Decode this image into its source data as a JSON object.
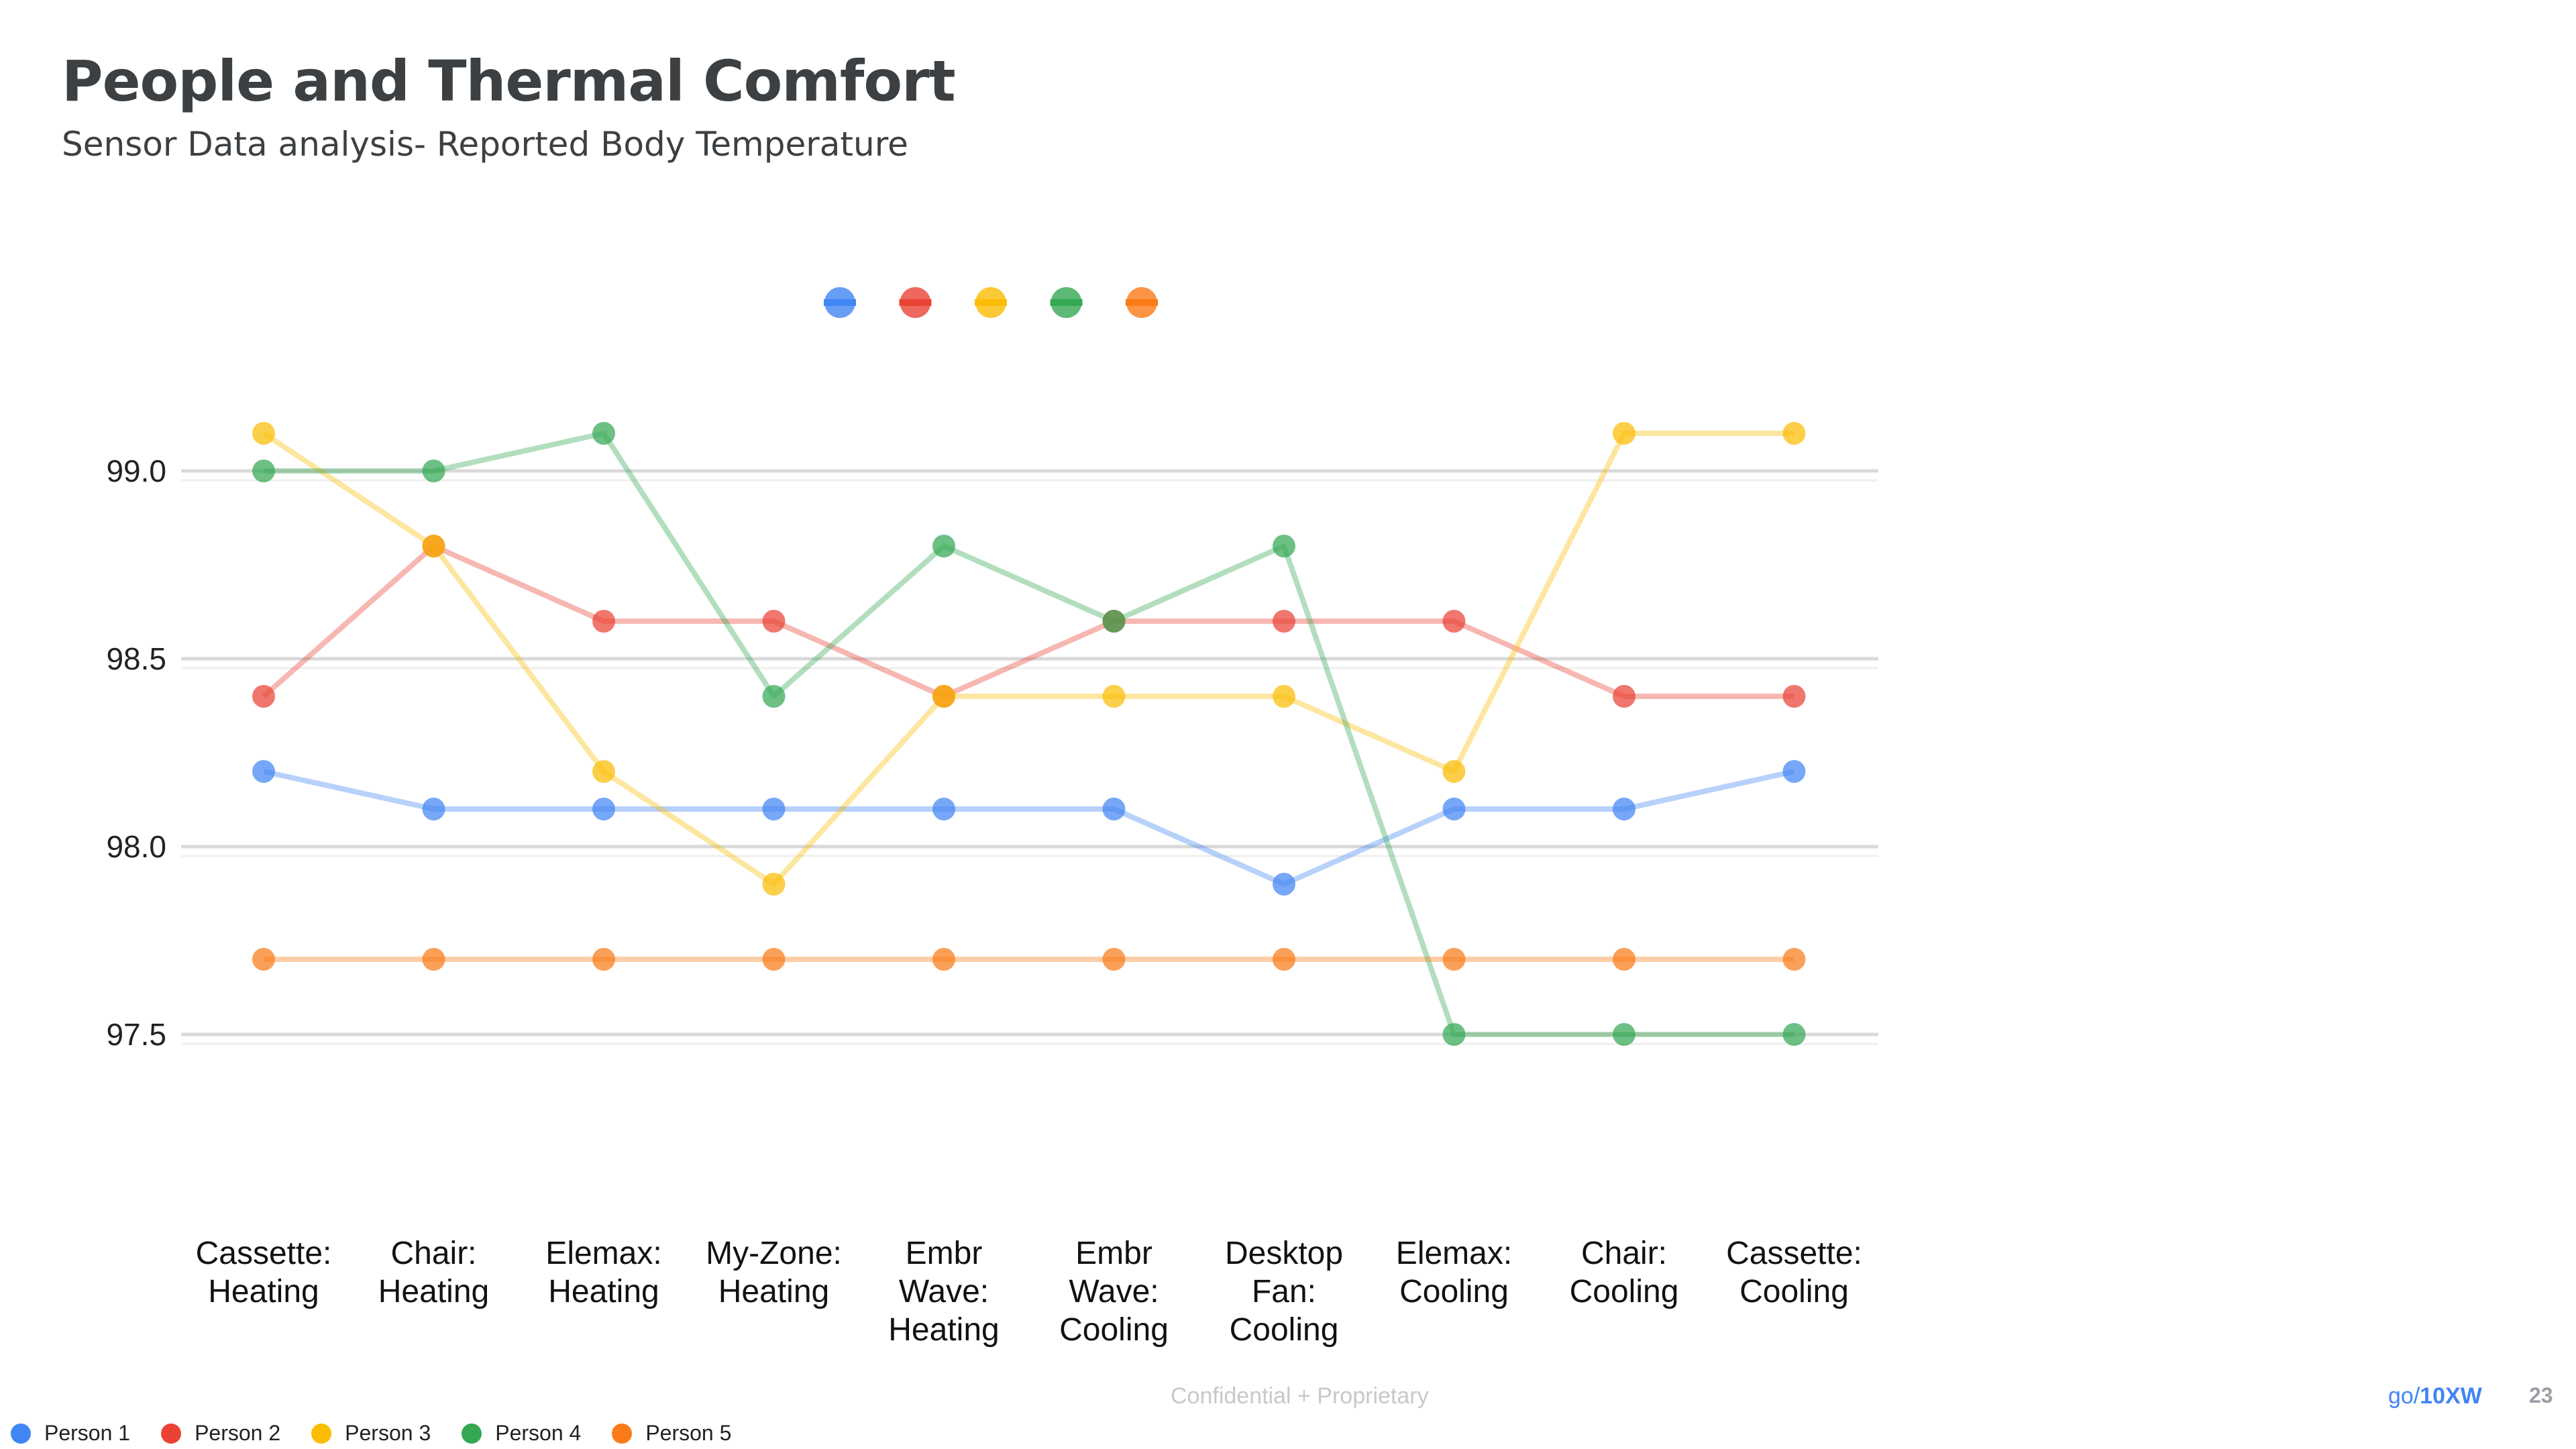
{
  "slide": {
    "title": "People and Thermal Comfort",
    "subtitle": "Sensor Data analysis- Reported Body Temperature",
    "footer_confidential": "Confidential + Proprietary",
    "golink_prefix": "go/",
    "golink_bold": "10XW",
    "page_number": "23"
  },
  "chart_data": {
    "type": "line",
    "title": "",
    "xlabel": "",
    "ylabel": "",
    "ylim": [
      97.3,
      99.4
    ],
    "yticks": [
      "99.0",
      "98.5",
      "98.0",
      "97.5"
    ],
    "grid": true,
    "legend_placement": "bottom-left",
    "categories": [
      [
        "Cassette:",
        "Heating"
      ],
      [
        "Chair:",
        "Heating"
      ],
      [
        "Elemax:",
        "Heating"
      ],
      [
        "My-Zone:",
        "Heating"
      ],
      [
        "Embr",
        "Wave:",
        "Heating"
      ],
      [
        "Embr",
        "Wave:",
        "Cooling"
      ],
      [
        "Desktop",
        "Fan:",
        "Cooling"
      ],
      [
        "Elemax:",
        "Cooling"
      ],
      [
        "Chair:",
        "Cooling"
      ],
      [
        "Cassette:",
        "Cooling"
      ]
    ],
    "series": [
      {
        "name": "Person 1",
        "color": "#4285f4",
        "values": [
          98.2,
          98.1,
          98.1,
          98.1,
          98.1,
          98.1,
          97.9,
          98.1,
          98.1,
          98.2
        ]
      },
      {
        "name": "Person 2",
        "color": "#ea4335",
        "values": [
          98.4,
          98.8,
          98.6,
          98.6,
          98.4,
          98.6,
          98.6,
          98.6,
          98.4,
          98.4
        ]
      },
      {
        "name": "Person 3",
        "color": "#fbbc04",
        "values": [
          99.1,
          98.8,
          98.2,
          97.9,
          98.4,
          98.4,
          98.4,
          98.2,
          99.1,
          99.1
        ]
      },
      {
        "name": "Person 4",
        "color": "#34a853",
        "values": [
          99.0,
          99.0,
          99.1,
          98.4,
          98.8,
          98.6,
          98.8,
          97.5,
          97.5,
          97.5
        ]
      },
      {
        "name": "Person 5",
        "color": "#fa7b17",
        "values": [
          97.7,
          97.7,
          97.7,
          97.7,
          97.7,
          97.7,
          97.7,
          97.7,
          97.7,
          97.7
        ]
      }
    ]
  }
}
